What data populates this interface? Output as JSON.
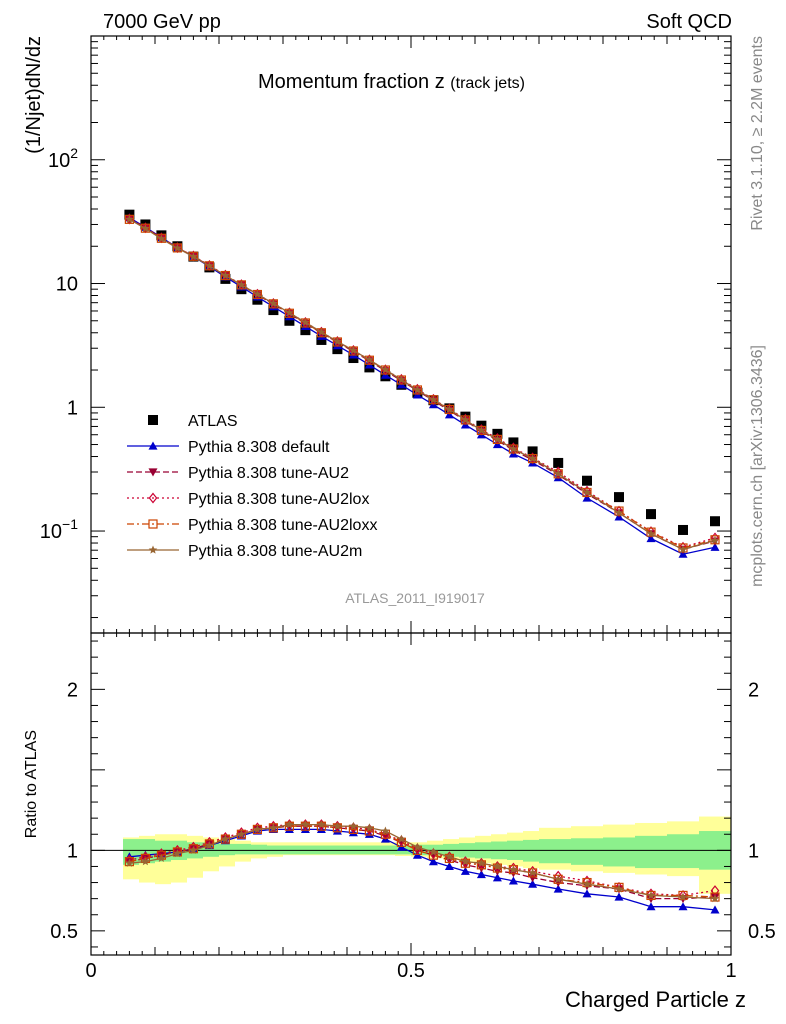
{
  "header": {
    "left": "7000 GeV pp",
    "right": "Soft QCD"
  },
  "side_labels": {
    "rivet": "Rivet 3.1.10, ≥ 2.2M events",
    "mcplots": "mcplots.cern.ch [arXiv:1306.3436]"
  },
  "chart_data": [
    {
      "type": "line",
      "title": "Momentum fraction z",
      "title_sub": "(track jets)",
      "ylabel": "(1/Njet)dN/dz",
      "xlabel": "",
      "yscale": "log",
      "ylim": [
        0.015,
        1000
      ],
      "xlim": [
        0,
        1
      ],
      "y_tick_labels": [
        "10^-1",
        "1",
        "10",
        "10^2"
      ],
      "analysis_tag": "ATLAS_2011_I919017",
      "legend_position": "bottom-left",
      "x": [
        0.06,
        0.085,
        0.11,
        0.135,
        0.16,
        0.185,
        0.21,
        0.235,
        0.26,
        0.285,
        0.31,
        0.335,
        0.36,
        0.385,
        0.41,
        0.435,
        0.46,
        0.485,
        0.51,
        0.535,
        0.56,
        0.585,
        0.61,
        0.635,
        0.66,
        0.69,
        0.73,
        0.775,
        0.825,
        0.875,
        0.925,
        0.975
      ],
      "series": [
        {
          "name": "ATLAS",
          "color": "#000000",
          "marker": "square",
          "style": "none",
          "values": [
            36,
            30,
            24.5,
            20,
            16.5,
            13.5,
            10.9,
            9.0,
            7.4,
            6.1,
            5.0,
            4.2,
            3.5,
            2.95,
            2.5,
            2.1,
            1.78,
            1.52,
            1.31,
            1.14,
            0.98,
            0.84,
            0.71,
            0.61,
            0.52,
            0.44,
            0.355,
            0.255,
            0.188,
            0.137,
            0.102,
            0.12
          ]
        },
        {
          "name": "Pythia 8.308 default",
          "color": "#0000cc",
          "marker": "triangle-up",
          "style": "solid",
          "values": [
            34,
            28.5,
            23.5,
            19.5,
            16.5,
            13.7,
            11.3,
            9.4,
            7.8,
            6.5,
            5.4,
            4.5,
            3.75,
            3.15,
            2.65,
            2.2,
            1.82,
            1.52,
            1.26,
            1.05,
            0.87,
            0.72,
            0.6,
            0.5,
            0.42,
            0.355,
            0.27,
            0.185,
            0.13,
            0.087,
            0.065,
            0.074
          ]
        },
        {
          "name": "Pythia 8.308 tune-AU2",
          "color": "#990033",
          "marker": "triangle-down",
          "style": "dashed",
          "values": [
            33.5,
            28.3,
            23.3,
            19.4,
            16.6,
            13.9,
            11.6,
            9.7,
            8.1,
            6.8,
            5.7,
            4.75,
            3.98,
            3.35,
            2.83,
            2.37,
            1.97,
            1.64,
            1.36,
            1.13,
            0.94,
            0.78,
            0.64,
            0.54,
            0.45,
            0.375,
            0.285,
            0.2,
            0.14,
            0.095,
            0.071,
            0.083
          ]
        },
        {
          "name": "Pythia 8.308 tune-AU2lox",
          "color": "#cc0033",
          "marker": "diamond-open",
          "style": "dotted",
          "values": [
            33.2,
            28.2,
            23.4,
            19.5,
            16.7,
            14.0,
            11.7,
            9.8,
            8.2,
            6.9,
            5.8,
            4.85,
            4.05,
            3.4,
            2.88,
            2.42,
            2.01,
            1.68,
            1.4,
            1.16,
            0.97,
            0.8,
            0.66,
            0.56,
            0.47,
            0.39,
            0.3,
            0.21,
            0.145,
            0.099,
            0.074,
            0.088
          ]
        },
        {
          "name": "Pythia 8.308 tune-AU2loxx",
          "color": "#cc4400",
          "marker": "square-open",
          "style": "dashdot",
          "values": [
            33,
            28,
            23.2,
            19.4,
            16.6,
            13.9,
            11.6,
            9.75,
            8.15,
            6.85,
            5.75,
            4.8,
            4.0,
            3.37,
            2.85,
            2.4,
            2.0,
            1.66,
            1.38,
            1.15,
            0.96,
            0.79,
            0.65,
            0.55,
            0.46,
            0.385,
            0.29,
            0.205,
            0.145,
            0.098,
            0.073,
            0.085
          ]
        },
        {
          "name": "Pythia 8.308 tune-AU2m",
          "color": "#996633",
          "marker": "star",
          "style": "solid",
          "values": [
            33,
            27.8,
            23,
            19.3,
            16.5,
            13.9,
            11.6,
            9.75,
            8.2,
            6.9,
            5.8,
            4.85,
            4.05,
            3.4,
            2.88,
            2.42,
            2.01,
            1.67,
            1.38,
            1.15,
            0.96,
            0.79,
            0.65,
            0.55,
            0.46,
            0.385,
            0.29,
            0.205,
            0.14,
            0.095,
            0.071,
            0.084
          ]
        }
      ]
    },
    {
      "type": "line",
      "title": "",
      "ylabel": "Ratio to ATLAS",
      "xlabel": "Charged Particle z",
      "ylim": [
        0.35,
        2.35
      ],
      "xlim": [
        0,
        1
      ],
      "y_ticks": [
        0.5,
        1,
        2
      ],
      "y_tick_labels": [
        "0.5",
        "1",
        "2"
      ],
      "x_ticks": [
        0,
        0.5,
        1
      ],
      "x_tick_labels": [
        "0",
        "0.5",
        "1"
      ],
      "x": [
        0.06,
        0.085,
        0.11,
        0.135,
        0.16,
        0.185,
        0.21,
        0.235,
        0.26,
        0.285,
        0.31,
        0.335,
        0.36,
        0.385,
        0.41,
        0.435,
        0.46,
        0.485,
        0.51,
        0.535,
        0.56,
        0.585,
        0.61,
        0.635,
        0.66,
        0.69,
        0.73,
        0.775,
        0.825,
        0.875,
        0.925,
        0.975
      ],
      "bands": {
        "bin_edges": [
          0.05,
          0.075,
          0.1,
          0.125,
          0.15,
          0.175,
          0.2,
          0.225,
          0.25,
          0.275,
          0.3,
          0.325,
          0.35,
          0.375,
          0.4,
          0.425,
          0.45,
          0.475,
          0.5,
          0.525,
          0.55,
          0.575,
          0.6,
          0.625,
          0.65,
          0.675,
          0.7,
          0.75,
          0.8,
          0.85,
          0.9,
          0.95,
          1.0
        ],
        "stat_color": "#8cf08c",
        "total_color": "#ffff99",
        "stat_low": [
          0.91,
          0.92,
          0.93,
          0.94,
          0.95,
          0.96,
          0.97,
          0.975,
          0.975,
          0.975,
          0.975,
          0.975,
          0.975,
          0.975,
          0.975,
          0.975,
          0.975,
          0.975,
          0.97,
          0.97,
          0.96,
          0.955,
          0.95,
          0.945,
          0.94,
          0.93,
          0.92,
          0.91,
          0.9,
          0.89,
          0.89,
          0.88
        ],
        "stat_high": [
          1.07,
          1.07,
          1.06,
          1.06,
          1.05,
          1.05,
          1.04,
          1.04,
          1.035,
          1.03,
          1.03,
          1.03,
          1.03,
          1.03,
          1.03,
          1.03,
          1.03,
          1.03,
          1.035,
          1.035,
          1.04,
          1.045,
          1.05,
          1.055,
          1.06,
          1.065,
          1.07,
          1.075,
          1.08,
          1.09,
          1.1,
          1.12
        ],
        "total_low": [
          0.82,
          0.8,
          0.79,
          0.8,
          0.83,
          0.87,
          0.9,
          0.93,
          0.95,
          0.96,
          0.97,
          0.97,
          0.97,
          0.97,
          0.97,
          0.97,
          0.97,
          0.965,
          0.96,
          0.95,
          0.94,
          0.93,
          0.92,
          0.91,
          0.9,
          0.89,
          0.88,
          0.87,
          0.86,
          0.85,
          0.84,
          0.73
        ],
        "total_high": [
          1.08,
          1.09,
          1.1,
          1.1,
          1.09,
          1.08,
          1.07,
          1.06,
          1.05,
          1.05,
          1.05,
          1.05,
          1.05,
          1.05,
          1.05,
          1.05,
          1.05,
          1.05,
          1.05,
          1.06,
          1.07,
          1.08,
          1.09,
          1.1,
          1.11,
          1.12,
          1.14,
          1.15,
          1.16,
          1.17,
          1.18,
          1.21
        ]
      },
      "series": [
        {
          "name": "Pythia 8.308 default",
          "color": "#0000cc",
          "marker": "triangle-up",
          "style": "solid",
          "values": [
            0.96,
            0.97,
            0.98,
            0.99,
            1.01,
            1.03,
            1.06,
            1.09,
            1.12,
            1.13,
            1.13,
            1.13,
            1.13,
            1.12,
            1.11,
            1.1,
            1.07,
            1.02,
            0.97,
            0.93,
            0.9,
            0.87,
            0.85,
            0.83,
            0.81,
            0.79,
            0.76,
            0.73,
            0.71,
            0.65,
            0.65,
            0.63
          ]
        },
        {
          "name": "Pythia 8.308 tune-AU2",
          "color": "#990033",
          "marker": "triangle-down",
          "style": "dashed",
          "values": [
            0.93,
            0.95,
            0.97,
            0.99,
            1.01,
            1.04,
            1.07,
            1.1,
            1.13,
            1.14,
            1.15,
            1.15,
            1.15,
            1.14,
            1.13,
            1.12,
            1.09,
            1.05,
            1.0,
            0.97,
            0.94,
            0.91,
            0.89,
            0.87,
            0.86,
            0.83,
            0.8,
            0.78,
            0.76,
            0.7,
            0.7,
            0.71
          ]
        },
        {
          "name": "Pythia 8.308 tune-AU2lox",
          "color": "#cc0033",
          "marker": "diamond-open",
          "style": "dotted",
          "values": [
            0.94,
            0.96,
            0.98,
            1.0,
            1.02,
            1.05,
            1.08,
            1.11,
            1.14,
            1.15,
            1.16,
            1.16,
            1.16,
            1.15,
            1.14,
            1.13,
            1.1,
            1.06,
            1.01,
            0.98,
            0.96,
            0.93,
            0.92,
            0.9,
            0.89,
            0.87,
            0.84,
            0.81,
            0.77,
            0.73,
            0.72,
            0.75
          ]
        },
        {
          "name": "Pythia 8.308 tune-AU2loxx",
          "color": "#cc4400",
          "marker": "square-open",
          "style": "dashdot",
          "values": [
            0.93,
            0.95,
            0.97,
            0.99,
            1.01,
            1.04,
            1.07,
            1.1,
            1.13,
            1.14,
            1.15,
            1.15,
            1.15,
            1.14,
            1.13,
            1.12,
            1.1,
            1.05,
            1.0,
            0.97,
            0.95,
            0.92,
            0.91,
            0.89,
            0.88,
            0.86,
            0.82,
            0.8,
            0.77,
            0.72,
            0.72,
            0.71
          ]
        },
        {
          "name": "Pythia 8.308 tune-AU2m",
          "color": "#996633",
          "marker": "star",
          "style": "solid",
          "values": [
            0.92,
            0.93,
            0.95,
            0.98,
            1.0,
            1.03,
            1.07,
            1.1,
            1.13,
            1.14,
            1.16,
            1.16,
            1.16,
            1.15,
            1.15,
            1.14,
            1.12,
            1.07,
            1.02,
            0.99,
            0.96,
            0.93,
            0.92,
            0.9,
            0.88,
            0.86,
            0.82,
            0.79,
            0.76,
            0.72,
            0.71,
            0.7
          ]
        }
      ]
    }
  ]
}
